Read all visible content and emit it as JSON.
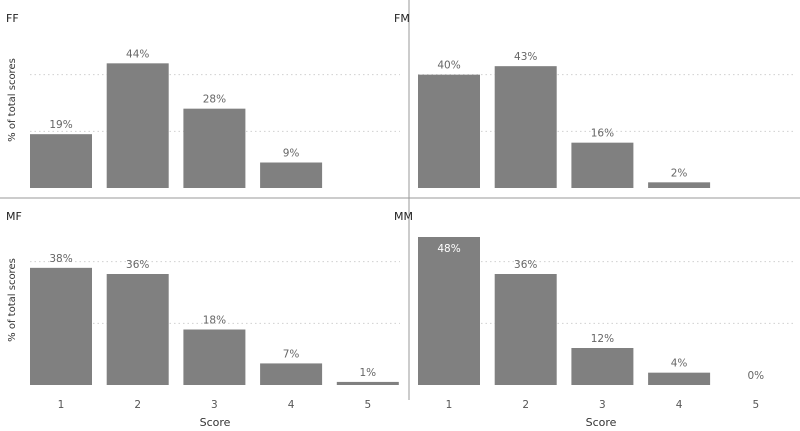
{
  "chart_data": {
    "type": "bar",
    "layout": "2x2 small multiples",
    "categories": [
      "1",
      "2",
      "3",
      "4",
      "5"
    ],
    "xlabel": "Score",
    "ylabel": "% of total scores",
    "ylim": [
      0,
      50
    ],
    "grid": true,
    "bar_color": "#808080",
    "panels": [
      {
        "name": "FF",
        "values": [
          19,
          44,
          28,
          9,
          null
        ],
        "labels": [
          "19%",
          "44%",
          "28%",
          "9%",
          ""
        ]
      },
      {
        "name": "FM",
        "values": [
          40,
          43,
          16,
          2,
          null
        ],
        "labels": [
          "40%",
          "43%",
          "16%",
          "2%",
          ""
        ]
      },
      {
        "name": "MF",
        "values": [
          38,
          36,
          18,
          7,
          1
        ],
        "labels": [
          "38%",
          "36%",
          "18%",
          "7%",
          "1%"
        ]
      },
      {
        "name": "MM",
        "values": [
          48,
          36,
          12,
          4,
          0
        ],
        "labels": [
          "48%",
          "36%",
          "12%",
          "4%",
          "0%"
        ]
      }
    ]
  }
}
